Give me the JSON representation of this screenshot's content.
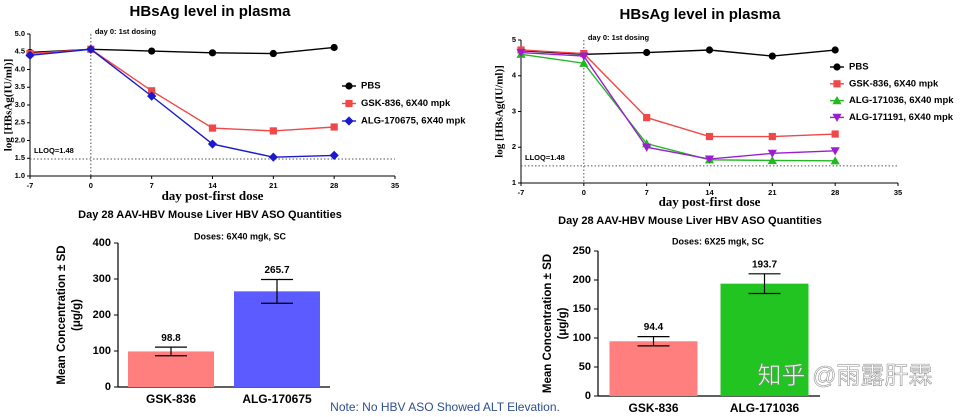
{
  "chart_data": [
    {
      "type": "line",
      "title": "HBsAg level in plasma",
      "x_label": "day post-first dose",
      "y_label": "log [HBsAg(IU/ml)]",
      "annotations": [
        "day 0: 1st dosing",
        "LLOQ=1.48"
      ],
      "lloq": 1.48,
      "reference_x": 0,
      "xlim": [
        -7,
        35
      ],
      "xticks": [
        -7,
        0,
        7,
        14,
        21,
        28,
        35
      ],
      "ylim": [
        1,
        5
      ],
      "yticks": [
        {
          "value": 1,
          "label": "1.0"
        },
        {
          "value": 1.5,
          "label": "1.5"
        },
        {
          "value": 2,
          "label": "2.0"
        },
        {
          "value": 2.5,
          "label": "2.5"
        },
        {
          "value": 3,
          "label": "3.0"
        },
        {
          "value": 3.5,
          "label": "3.5"
        },
        {
          "value": 4,
          "label": "4.0"
        },
        {
          "value": 4.5,
          "label": "4.5"
        },
        {
          "value": 5,
          "label": "5.0"
        }
      ],
      "series": [
        {
          "name": "PBS",
          "color": "#000000",
          "marker": "circle",
          "x": [
            -7,
            0,
            7,
            14,
            21,
            28
          ],
          "values": [
            4.48,
            4.57,
            4.52,
            4.47,
            4.45,
            4.62
          ]
        },
        {
          "name": "GSK-836, 6X40 mpk",
          "color": "#f04848",
          "marker": "square",
          "x": [
            -7,
            0,
            7,
            14,
            21,
            28
          ],
          "values": [
            4.45,
            4.57,
            3.4,
            2.35,
            2.27,
            2.38
          ]
        },
        {
          "name": "ALG-170675, 6X40 mpk",
          "color": "#1a1acc",
          "marker": "diamond",
          "x": [
            -7,
            0,
            7,
            14,
            21,
            28
          ],
          "values": [
            4.4,
            4.57,
            3.25,
            1.9,
            1.53,
            1.58
          ]
        }
      ]
    },
    {
      "type": "line",
      "title": "HBsAg level in plasma",
      "x_label": "day post-first dose",
      "y_label": "log [HBsAg(IU/ml)]",
      "annotations": [
        "day 0: 1st dosing",
        "LLOQ=1.48"
      ],
      "lloq": 1.48,
      "reference_x": 0,
      "xlim": [
        -7,
        35
      ],
      "xticks": [
        -7,
        0,
        7,
        14,
        21,
        28,
        35
      ],
      "ylim": [
        1,
        5
      ],
      "yticks": [
        1,
        2,
        3,
        4,
        5
      ],
      "series": [
        {
          "name": "PBS",
          "color": "#000000",
          "marker": "circle",
          "x": [
            -7,
            0,
            7,
            14,
            21,
            28
          ],
          "values": [
            4.7,
            4.6,
            4.65,
            4.72,
            4.55,
            4.72
          ]
        },
        {
          "name": "GSK-836, 6X40 mpk",
          "color": "#f04848",
          "marker": "square",
          "x": [
            -7,
            0,
            7,
            14,
            21,
            28
          ],
          "values": [
            4.72,
            4.62,
            2.83,
            2.3,
            2.3,
            2.37
          ]
        },
        {
          "name": "ALG-171036, 6X40 mpk",
          "color": "#22b822",
          "marker": "triangle",
          "x": [
            -7,
            0,
            7,
            14,
            21,
            28
          ],
          "values": [
            4.6,
            4.35,
            2.1,
            1.65,
            1.63,
            1.62
          ]
        },
        {
          "name": "ALG-171191, 6X40 mpk",
          "color": "#9b1fd0",
          "marker": "triangle-down",
          "x": [
            -7,
            0,
            7,
            14,
            21,
            28
          ],
          "values": [
            4.65,
            4.55,
            2.0,
            1.67,
            1.83,
            1.9
          ]
        }
      ]
    },
    {
      "type": "bar",
      "title": "Day 28 AAV-HBV Mouse Liver HBV ASO  Quantities",
      "subtitle": "Doses: 6X40 mgk, SC",
      "y_label": [
        "Mean Concentration ± SD",
        "(μg/g)"
      ],
      "categories": [
        "GSK-836",
        "ALG-170675"
      ],
      "values": [
        98.8,
        265.7
      ],
      "errors": [
        12,
        33
      ],
      "colors": [
        "#ff7f7f",
        "#5b5bff"
      ],
      "ylim": [
        0,
        400
      ],
      "yticks": [
        0,
        100,
        200,
        300,
        400
      ]
    },
    {
      "type": "bar",
      "title": "Day 28 AAV-HBV Mouse Liver HBV ASO  Quantities",
      "subtitle": "Doses: 6X25 mgk, SC",
      "y_label": [
        "Mean Concentration ± SD",
        "(μg/g)"
      ],
      "categories": [
        "GSK-836",
        "ALG-171036"
      ],
      "values": [
        94.4,
        193.7
      ],
      "errors": [
        8,
        17
      ],
      "colors": [
        "#ff7f7f",
        "#22c422"
      ],
      "ylim": [
        0,
        250
      ],
      "yticks": [
        0,
        50,
        100,
        150,
        200,
        250
      ]
    }
  ],
  "note": "Note: No HBV ASO Showed ALT Elevation.",
  "watermark": "知乎 @雨露肝霖"
}
